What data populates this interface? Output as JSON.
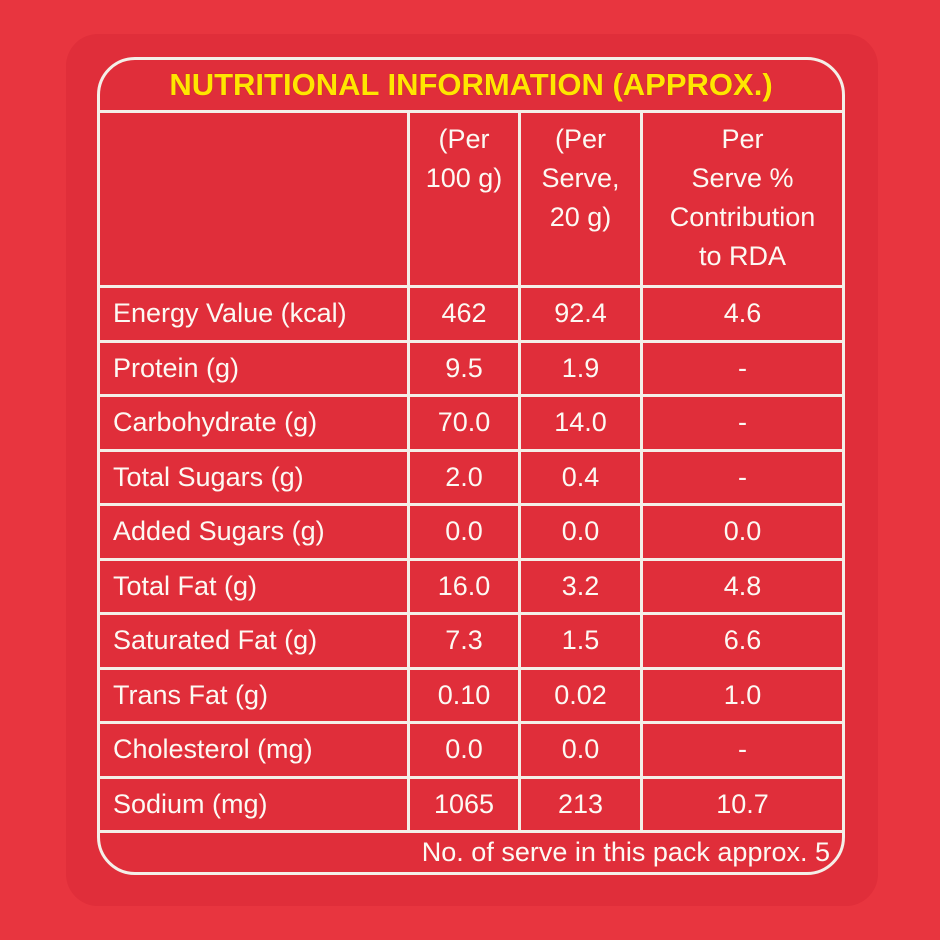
{
  "title": "NUTRITIONAL INFORMATION (APPROX.)",
  "colors": {
    "background_red": "#e8353f",
    "package_face_red": "#e02e3a",
    "line_white": "#f4efe8",
    "text_white": "#fcf9f3",
    "title_yellow": "#ffe600"
  },
  "table": {
    "header": {
      "col_label": "",
      "col_per_100g": "(Per\n100 g)",
      "col_per_serve": "(Per\nServe,\n20 g)",
      "col_rda": "Per\nServe %\nContribution\nto RDA"
    },
    "rows": [
      {
        "label": "Energy Value (kcal)",
        "per_100g": "462",
        "per_serve": "92.4",
        "rda": "4.6"
      },
      {
        "label": "Protein (g)",
        "per_100g": "9.5",
        "per_serve": "1.9",
        "rda": "-"
      },
      {
        "label": "Carbohydrate (g)",
        "per_100g": "70.0",
        "per_serve": "14.0",
        "rda": "-"
      },
      {
        "label": "Total Sugars (g)",
        "per_100g": "2.0",
        "per_serve": "0.4",
        "rda": "-"
      },
      {
        "label": "Added Sugars (g)",
        "per_100g": "0.0",
        "per_serve": "0.0",
        "rda": "0.0"
      },
      {
        "label": "Total Fat (g)",
        "per_100g": "16.0",
        "per_serve": "3.2",
        "rda": "4.8"
      },
      {
        "label": "Saturated Fat (g)",
        "per_100g": "7.3",
        "per_serve": "1.5",
        "rda": "6.6"
      },
      {
        "label": "Trans Fat (g)",
        "per_100g": "0.10",
        "per_serve": "0.02",
        "rda": "1.0"
      },
      {
        "label": "Cholesterol (mg)",
        "per_100g": "0.0",
        "per_serve": "0.0",
        "rda": "-"
      },
      {
        "label": "Sodium (mg)",
        "per_100g": "1065",
        "per_serve": "213",
        "rda": "10.7"
      }
    ],
    "footer_note": "No. of serve in this pack approx. 5"
  }
}
